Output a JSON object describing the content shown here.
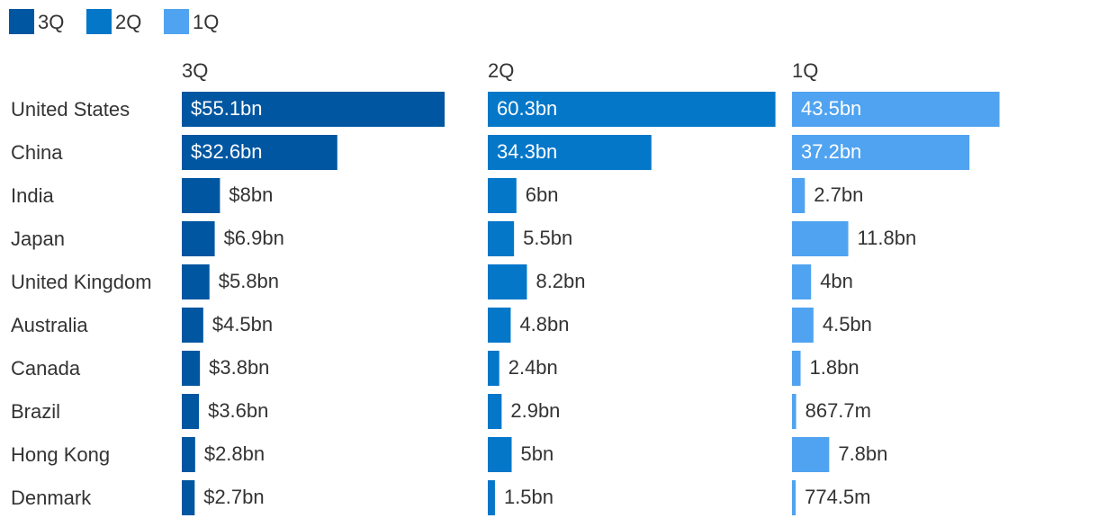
{
  "chart_data": {
    "type": "bar",
    "orientation": "horizontal",
    "legend_position": "top-left",
    "grid": false,
    "categories": [
      "United States",
      "China",
      "India",
      "Japan",
      "United Kingdom",
      "Australia",
      "Canada",
      "Brazil",
      "Hong Kong",
      "Denmark"
    ],
    "series": [
      {
        "name": "3Q",
        "color": "#0056a0",
        "values": [
          55.1,
          32.6,
          8,
          6.9,
          5.8,
          4.5,
          3.8,
          3.6,
          2.8,
          2.7
        ],
        "labels": [
          "$55.1bn",
          "$32.6bn",
          "$8bn",
          "$6.9bn",
          "$5.8bn",
          "$4.5bn",
          "$3.8bn",
          "$3.6bn",
          "$2.8bn",
          "$2.7bn"
        ]
      },
      {
        "name": "2Q",
        "color": "#0477c9",
        "values": [
          60.3,
          34.3,
          6,
          5.5,
          8.2,
          4.8,
          2.4,
          2.9,
          5,
          1.5
        ],
        "labels": [
          "60.3bn",
          "34.3bn",
          "6bn",
          "5.5bn",
          "8.2bn",
          "4.8bn",
          "2.4bn",
          "2.9bn",
          "5bn",
          "1.5bn"
        ]
      },
      {
        "name": "1Q",
        "color": "#50a3f0",
        "values": [
          43.5,
          37.2,
          2.7,
          11.8,
          4,
          4.5,
          1.8,
          0.8677,
          7.8,
          0.7745
        ],
        "labels": [
          "43.5bn",
          "37.2bn",
          "2.7bn",
          "11.8bn",
          "4bn",
          "4.5bn",
          "1.8bn",
          "867.7m",
          "7.8bn",
          "774.5m"
        ]
      }
    ]
  }
}
